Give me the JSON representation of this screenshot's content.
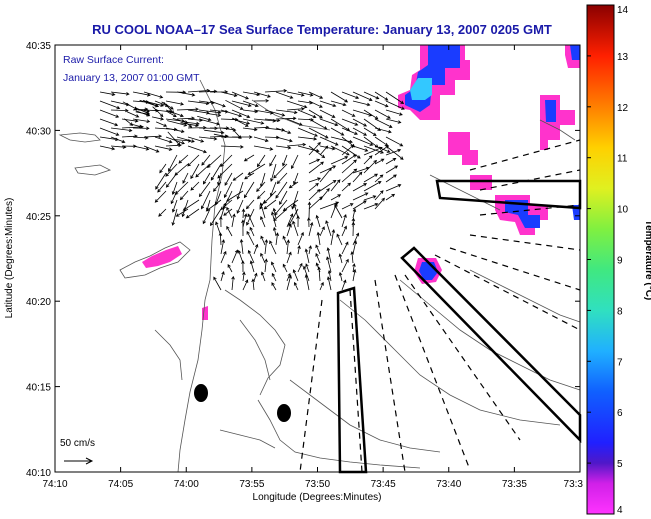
{
  "title": "RU COOL  NOAA–17  Sea Surface Temperature:  January 13, 2007 0205 GMT",
  "overlay": {
    "line1": "Raw Surface Current:",
    "line2": "January 13, 2007 01:00 GMT"
  },
  "scale_label": "50 cm/s",
  "axes": {
    "xlabel": "Longitude (Degrees:Minutes)",
    "ylabel": "Latitude (Degrees:Minutes)",
    "x_ticks": [
      "74:10",
      "74:05",
      "74:00",
      "73:55",
      "73:50",
      "73:45",
      "73:40",
      "73:35",
      "73:3"
    ],
    "y_ticks": [
      "40:35",
      "40:30",
      "40:25",
      "40:20",
      "40:15",
      "40:10"
    ]
  },
  "colorbar": {
    "label": "Temperature (°C)",
    "min": 4,
    "max": 14,
    "ticks": [
      "14",
      "13",
      "12",
      "11",
      "10",
      "9",
      "8",
      "7",
      "6",
      "5",
      "4"
    ]
  },
  "colors": {
    "title": "#1a1aa8",
    "sst_cold_magenta": "#ff33cc",
    "sst_blue": "#1a3cff",
    "sst_cyan": "#33c8ff"
  }
}
